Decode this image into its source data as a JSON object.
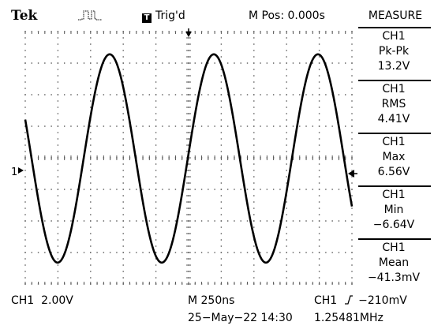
{
  "header": {
    "brand": "Tek",
    "acq_icon": "acquisition-run-pulse-icon",
    "trigger_icon_glyph": "T",
    "trigger_status": "Trig'd",
    "m_pos": "M Pos: 0.000s"
  },
  "measure_menu": {
    "title": "MEASURE",
    "items": [
      {
        "source": "CH1",
        "type": "Pk-Pk",
        "value": "13.2V"
      },
      {
        "source": "CH1",
        "type": "RMS",
        "value": "4.41V"
      },
      {
        "source": "CH1",
        "type": "Max",
        "value": "6.56V"
      },
      {
        "source": "CH1",
        "type": "Min",
        "value": "−6.64V"
      },
      {
        "source": "CH1",
        "type": "Mean",
        "value": "−41.3mV"
      }
    ]
  },
  "screen": {
    "ch1_marker": "1",
    "trigger_position_icon": "trigger-position-arrow-icon",
    "trigger_level_icon": "trigger-level-arrow-icon"
  },
  "footer": {
    "ch1_scale": "CH1  2.00V",
    "timebase": "M 250ns",
    "trigger_source": "CH1",
    "trigger_slope_icon": "rising-edge-icon",
    "trigger_level": "−210mV",
    "date": "25−May−22 14:30",
    "frequency": "1.25481MHz"
  },
  "waveform": {
    "channel": "CH1",
    "volts_per_div": 2.0,
    "time_per_div_ns": 250,
    "frequency_mhz": 1.25481,
    "peak_to_peak_v": 13.2,
    "max_v": 6.56,
    "min_v": -6.64
  }
}
